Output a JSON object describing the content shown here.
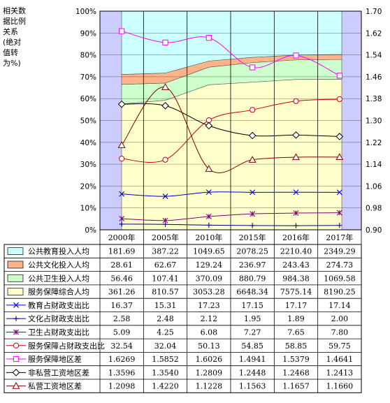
{
  "chart_data": {
    "type": "area",
    "ylabel_left": "相关数据比例关系(绝对值转为%)",
    "left_ticks": [
      "0%",
      "10%",
      "20%",
      "30%",
      "40%",
      "50%",
      "60%",
      "70%",
      "80%",
      "90%",
      "100%"
    ],
    "right_ticks": [
      "0.90",
      "0.98",
      "1.06",
      "1.14",
      "1.22",
      "1.30",
      "1.38",
      "1.46",
      "1.54",
      "1.62",
      "1.70"
    ],
    "left_ylim": [
      0,
      100
    ],
    "right_ylim": [
      0.9,
      1.7
    ],
    "categories": [
      "2000年",
      "2005年",
      "2010年",
      "2015年",
      "2016年",
      "2017年"
    ],
    "area_series": [
      {
        "name": "公共教育投入人均",
        "values": [
          181.69,
          387.22,
          1049.65,
          2078.25,
          2210.4,
          2349.29
        ],
        "color": "#ccffff"
      },
      {
        "name": "公共文化投入人均",
        "values": [
          28.61,
          62.67,
          129.24,
          236.97,
          243.43,
          274.73
        ],
        "color": "#ffb38a"
      },
      {
        "name": "公共卫生投入人均",
        "values": [
          56.46,
          107.41,
          370.09,
          880.79,
          984.38,
          1069.58
        ],
        "color": "#ccffcc"
      },
      {
        "name": "服务保障综合人均",
        "values": [
          361.26,
          810.57,
          3053.28,
          6648.34,
          7575.14,
          8190.25
        ],
        "color": "#ffffcc"
      }
    ],
    "line_series": [
      {
        "name": "教育占财政支出比",
        "values": [
          16.37,
          15.31,
          17.23,
          17.15,
          17.17,
          17.14
        ],
        "axis": "left",
        "color": "#0000cc",
        "marker": "x"
      },
      {
        "name": "文化占财政支出比",
        "values": [
          2.58,
          2.48,
          2.12,
          1.95,
          1.89,
          2.0
        ],
        "axis": "left",
        "color": "#000080",
        "marker": "plus"
      },
      {
        "name": "卫生占财政支出比",
        "values": [
          5.09,
          4.25,
          6.08,
          7.27,
          7.65,
          7.8
        ],
        "axis": "left",
        "color": "#800080",
        "marker": "star"
      },
      {
        "name": "服务保障占财政支出比",
        "values": [
          32.54,
          32.04,
          50.13,
          54.85,
          58.85,
          59.75
        ],
        "axis": "left",
        "color": "#cc0000",
        "marker": "circle"
      },
      {
        "name": "服务保障地区差",
        "values": [
          1.6269,
          1.5852,
          1.6026,
          1.4941,
          1.5379,
          1.4641
        ],
        "axis": "right",
        "color": "#ff00ff",
        "marker": "square"
      },
      {
        "name": "非私营工资地区差",
        "values": [
          1.3596,
          1.354,
          1.2809,
          1.2448,
          1.2468,
          1.2413
        ],
        "axis": "right",
        "color": "#000000",
        "marker": "diamond"
      },
      {
        "name": "私营工资地区差",
        "values": [
          1.2098,
          1.422,
          1.1228,
          1.1563,
          1.1657,
          1.166
        ],
        "axis": "right",
        "color": "#800000",
        "marker": "triangle"
      }
    ],
    "table_rows": [
      {
        "name": "公共教育投入人均",
        "cells": [
          "181.69",
          "387.22",
          "1049.65",
          "2078.25",
          "2210.40",
          "2349.29"
        ]
      },
      {
        "name": "公共文化投入人均",
        "cells": [
          "28.61",
          "62.67",
          "129.24",
          "236.97",
          "243.43",
          "274.73"
        ]
      },
      {
        "name": "公共卫生投入人均",
        "cells": [
          "56.46",
          "107.41",
          "370.09",
          "880.79",
          "984.38",
          "1069.58"
        ]
      },
      {
        "name": "服务保障综合人均",
        "cells": [
          "361.26",
          "810.57",
          "3053.28",
          "6648.34",
          "7575.14",
          "8190.25"
        ]
      },
      {
        "name": "教育占财政支出比",
        "cells": [
          "16.37",
          "15.31",
          "17.23",
          "17.15",
          "17.17",
          "17.14"
        ]
      },
      {
        "name": "文化占财政支出比",
        "cells": [
          "2.58",
          "2.48",
          "2.12",
          "1.95",
          "1.89",
          "2.00"
        ]
      },
      {
        "name": "卫生占财政支出比",
        "cells": [
          "5.09",
          "4.25",
          "6.08",
          "7.27",
          "7.65",
          "7.80"
        ]
      },
      {
        "name": "服务保障占财政支出比",
        "cells": [
          "32.54",
          "32.04",
          "50.13",
          "54.85",
          "58.85",
          "59.75"
        ]
      },
      {
        "name": "服务保障地区差",
        "cells": [
          "1.6269",
          "1.5852",
          "1.6026",
          "1.4941",
          "1.5379",
          "1.4641"
        ]
      },
      {
        "name": "非私营工资地区差",
        "cells": [
          "1.3596",
          "1.3540",
          "1.2809",
          "1.2448",
          "1.2468",
          "1.2413"
        ]
      },
      {
        "name": "私营工资地区差",
        "cells": [
          "1.2098",
          "1.4220",
          "1.1228",
          "1.1563",
          "1.1657",
          "1.1660"
        ]
      }
    ],
    "grid": true,
    "legend": "table-left"
  }
}
